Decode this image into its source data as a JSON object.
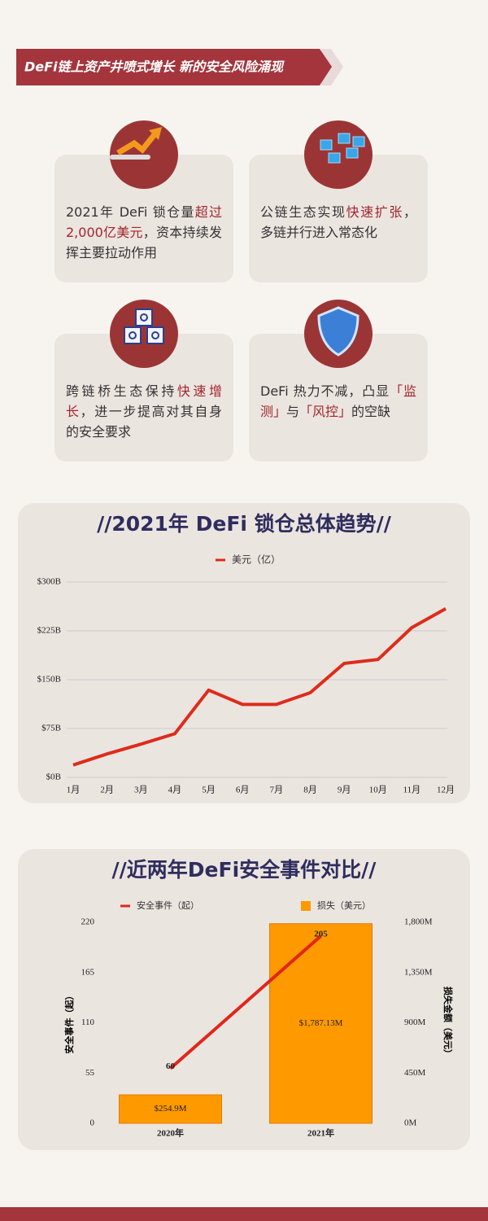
{
  "header": {
    "title": "DeFi链上资产井喷式增长  新的安全风险涌现"
  },
  "cards": [
    {
      "segments": [
        {
          "text": "2021年 DeFi 锁仓量",
          "em": false
        },
        {
          "text": "超过2,000亿美元",
          "em": true
        },
        {
          "text": "，资本持续发挥主要拉动作用",
          "em": false
        }
      ]
    },
    {
      "segments": [
        {
          "text": "公链生态实现",
          "em": false
        },
        {
          "text": "快速扩张",
          "em": true
        },
        {
          "text": "，多链并行进入常态化",
          "em": false
        }
      ]
    },
    {
      "segments": [
        {
          "text": "跨链桥生态保持",
          "em": false
        },
        {
          "text": "快速增长",
          "em": true
        },
        {
          "text": "，进一步提高对其自身的安全要求",
          "em": false
        }
      ]
    },
    {
      "segments": [
        {
          "text": "DeFi 热力不减，凸显",
          "em": false
        },
        {
          "text": "「监测」",
          "em": true
        },
        {
          "text": "与",
          "em": false
        },
        {
          "text": "「风控」",
          "em": true
        },
        {
          "text": "的空缺",
          "em": false
        }
      ]
    }
  ],
  "chart_data": [
    {
      "type": "line",
      "title": "//2021年 DeFi 锁仓总体趋势//",
      "categories": [
        "1月",
        "2月",
        "3月",
        "4月",
        "5月",
        "6月",
        "7月",
        "8月",
        "9月",
        "10月",
        "11月",
        "12月"
      ],
      "series": [
        {
          "name": "美元（亿）",
          "color": "#dd2c1c",
          "values": [
            19,
            36,
            51,
            67,
            134,
            112,
            112,
            130,
            175,
            181,
            230,
            259
          ]
        }
      ],
      "ylim": [
        0,
        300
      ],
      "yticks": [
        {
          "value": 0,
          "label": "$0B"
        },
        {
          "value": 75,
          "label": "$75B"
        },
        {
          "value": 150,
          "label": "$150B"
        },
        {
          "value": 225,
          "label": "$225B"
        },
        {
          "value": 300,
          "label": "$300B"
        }
      ],
      "grid": true
    },
    {
      "type": "combo",
      "title": "//近两年DeFi安全事件对比//",
      "categories": [
        "2020年",
        "2021年"
      ],
      "series": [
        {
          "name": "安全事件（起）",
          "type": "line",
          "color": "#e0261b",
          "values": [
            60,
            205
          ]
        },
        {
          "name": "损失（美元）",
          "type": "bar",
          "axis": "y2",
          "color": "#ff9900",
          "values": [
            254.9,
            1787.13
          ],
          "value_labels": [
            "$254.9M",
            "$1,787.13M"
          ]
        }
      ],
      "ylabel": "安全事件（起）",
      "y2label": "损失金额（美元）",
      "ylim": [
        0,
        220
      ],
      "yticks": [
        0,
        55,
        110,
        165,
        220
      ],
      "y2lim": [
        0,
        1800
      ],
      "y2ticks": [
        {
          "value": 0,
          "label": "0M"
        },
        {
          "value": 450,
          "label": "450M"
        },
        {
          "value": 900,
          "label": "900M"
        },
        {
          "value": 1350,
          "label": "1,350M"
        },
        {
          "value": 1800,
          "label": "1,800M"
        }
      ],
      "grid": false
    }
  ]
}
